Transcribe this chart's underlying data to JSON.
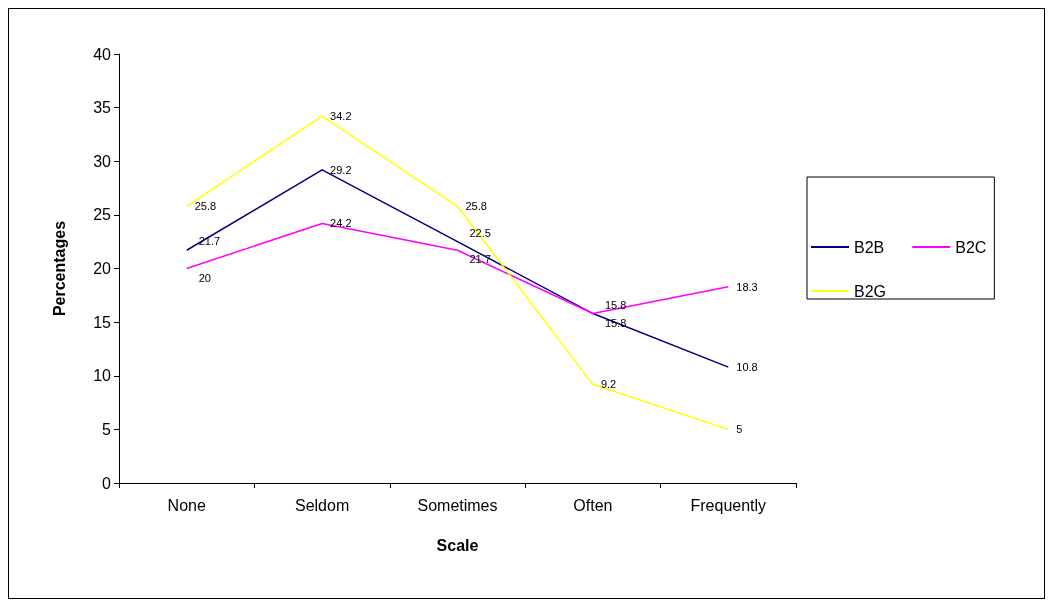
{
  "chart_data": {
    "type": "line",
    "xlabel": "Scale",
    "ylabel": "Percentages",
    "categories": [
      "None",
      "Seldom",
      "Sometimes",
      "Often",
      "Frequently"
    ],
    "series": [
      {
        "name": "B2B",
        "color": "#000080",
        "values": [
          21.7,
          29.2,
          22.5,
          15.8,
          10.8
        ]
      },
      {
        "name": "B2C",
        "color": "#ff00ff",
        "values": [
          20,
          24.2,
          21.7,
          15.8,
          18.3
        ]
      },
      {
        "name": "B2G",
        "color": "#ffff00",
        "values": [
          25.8,
          34.2,
          25.8,
          9.2,
          5
        ]
      }
    ],
    "ylim": [
      0,
      40
    ],
    "yticks": [
      0,
      5,
      10,
      15,
      20,
      25,
      30,
      35,
      40
    ],
    "grid": false,
    "legend": "right",
    "marker": "none",
    "line_style": "solid",
    "data_labels": true
  }
}
